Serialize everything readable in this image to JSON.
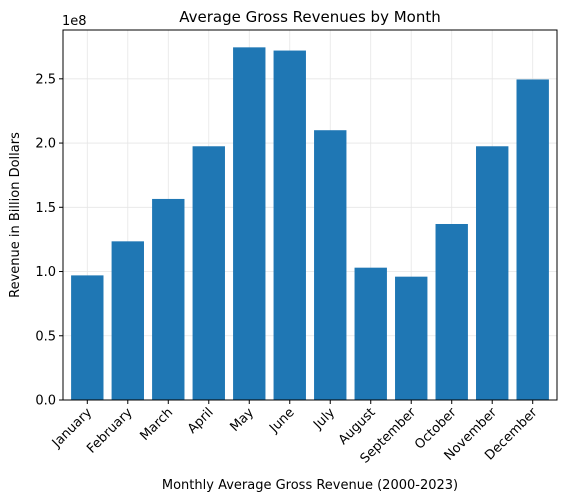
{
  "chart_data": {
    "type": "bar",
    "title": "Average Gross Revenues by Month",
    "xlabel": "Monthly Average Gross Revenue (2000-2023)",
    "ylabel": "Revenue in Billion Dollars",
    "offset_text": "1e8",
    "categories": [
      "January",
      "February",
      "March",
      "April",
      "May",
      "June",
      "July",
      "August",
      "September",
      "October",
      "November",
      "December"
    ],
    "values": [
      97000000,
      123500000,
      156500000,
      197500000,
      274500000,
      272000000,
      210000000,
      103000000,
      96000000,
      137000000,
      197500000,
      249500000
    ],
    "ylim": [
      0,
      288000000
    ],
    "yticks": [
      0,
      50000000,
      100000000,
      150000000,
      200000000,
      250000000
    ],
    "ytick_labels": [
      "0.0",
      "0.5",
      "1.0",
      "1.5",
      "2.0",
      "2.5"
    ],
    "grid": true,
    "bar_color": "#1f77b4",
    "grid_color": "#e6e6e6"
  }
}
